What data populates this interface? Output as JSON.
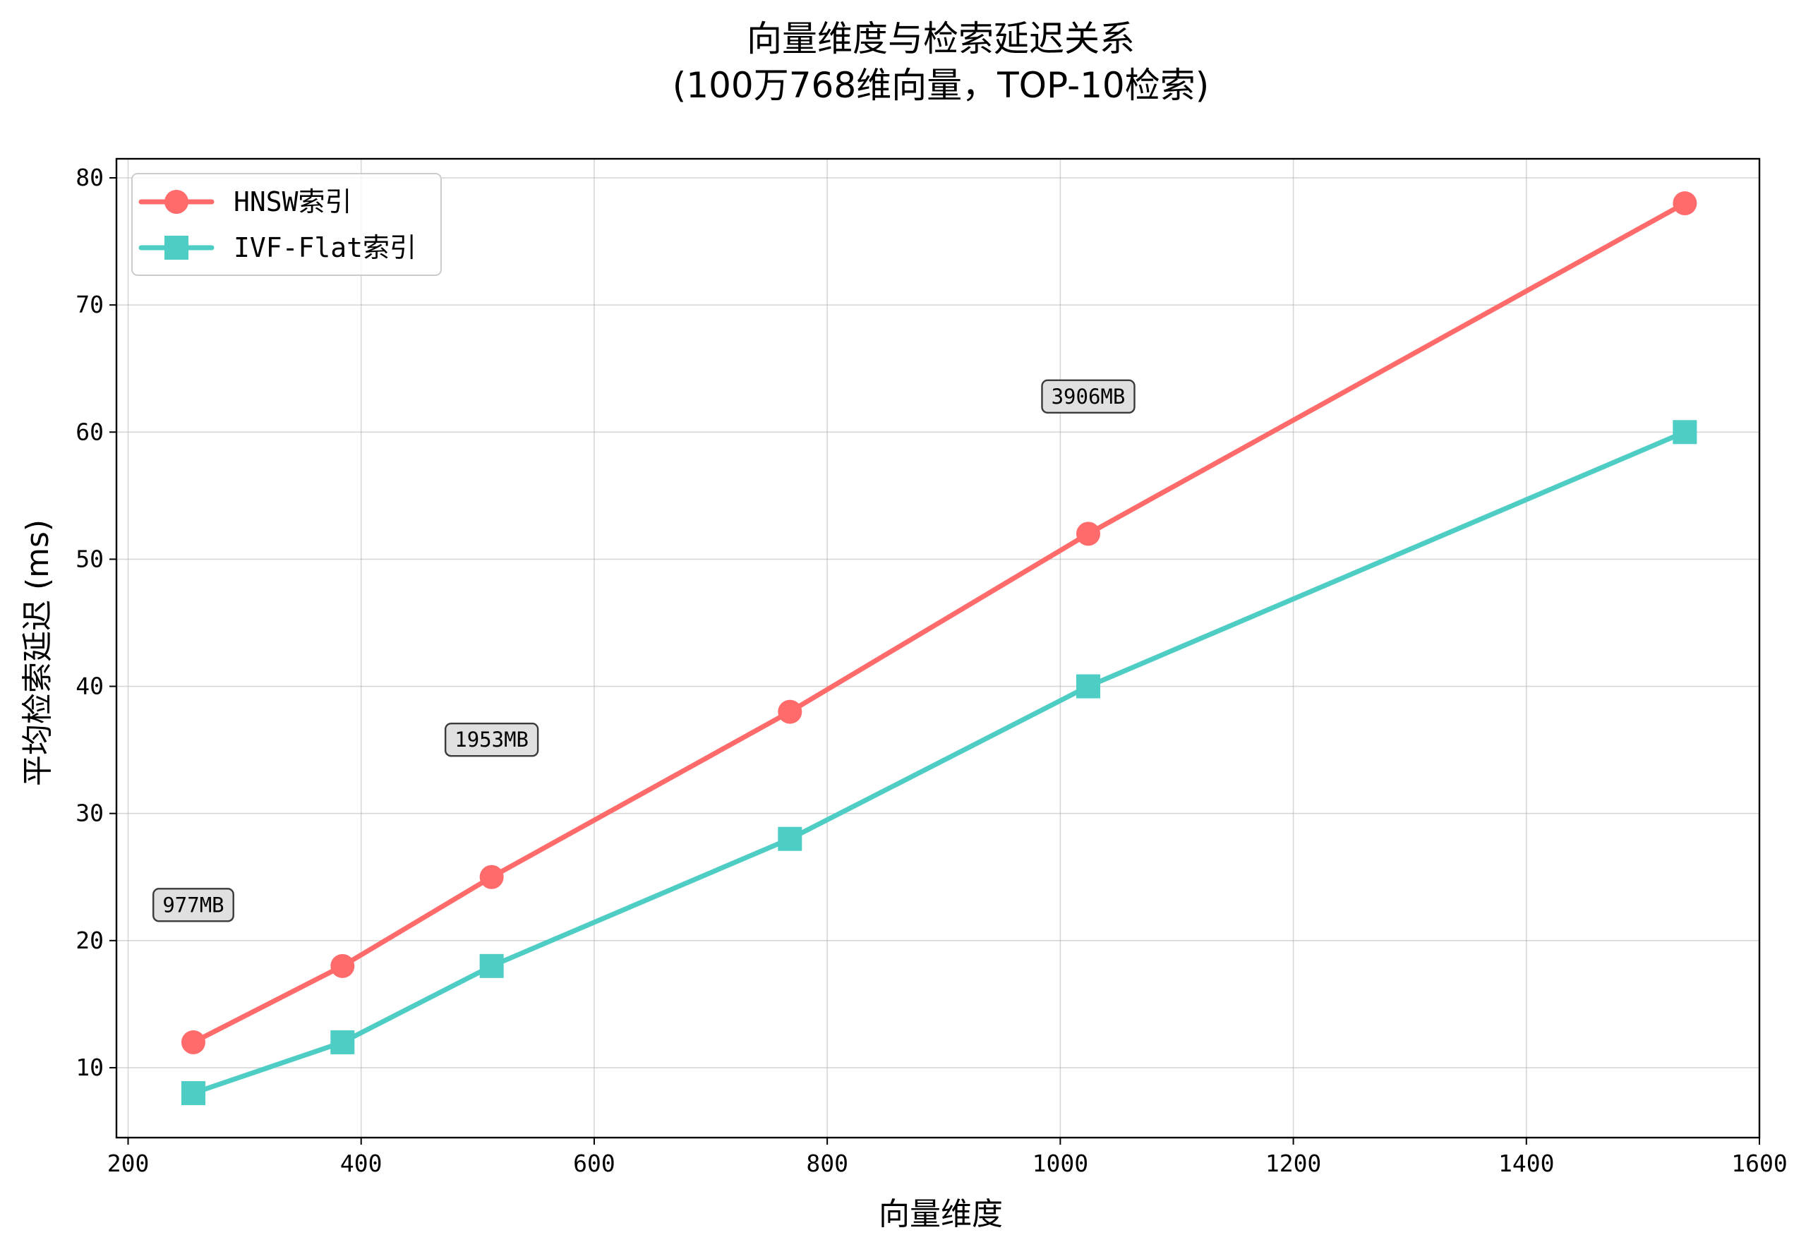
{
  "chart_data": {
    "type": "line",
    "title": "向量维度与检索延迟关系",
    "subtitle": "(100万768维向量，TOP-10检索)",
    "xlabel": "向量维度",
    "ylabel": "平均检索延迟 (ms)",
    "xlim": [
      190,
      1600
    ],
    "ylim": [
      4.5,
      81.5
    ],
    "xticks": [
      200,
      400,
      600,
      800,
      1000,
      1200,
      1400,
      1600
    ],
    "yticks": [
      10,
      20,
      30,
      40,
      50,
      60,
      70,
      80
    ],
    "grid": true,
    "legend_position": "top-left",
    "x": [
      256,
      384,
      512,
      768,
      1024,
      1536
    ],
    "series": [
      {
        "name": "HNSW索引",
        "values": [
          12,
          18,
          25,
          38,
          52,
          78
        ],
        "color": "#ff6b6b",
        "marker": "circle"
      },
      {
        "name": "IVF-Flat索引",
        "values": [
          8,
          12,
          18,
          28,
          40,
          60
        ],
        "color": "#4ecdc4",
        "marker": "square"
      }
    ],
    "annotations": [
      {
        "text": "977MB",
        "x": 256,
        "y": 22.8
      },
      {
        "text": "1953MB",
        "x": 512,
        "y": 35.8
      },
      {
        "text": "3906MB",
        "x": 1024,
        "y": 62.8
      }
    ]
  }
}
